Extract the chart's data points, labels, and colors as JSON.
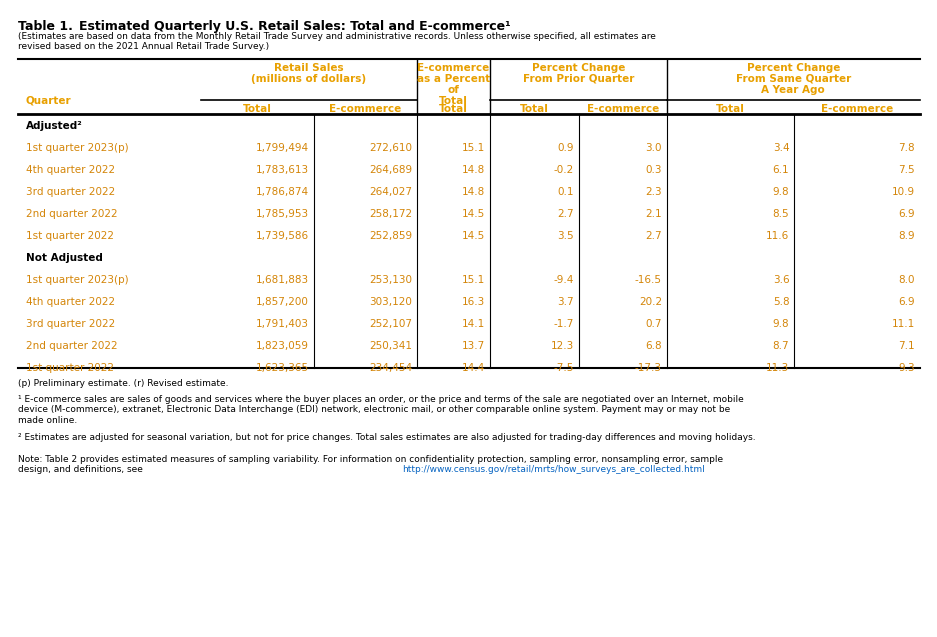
{
  "title": "Table 1.",
  "title_label": "Estimated Quarterly U.S. Retail Sales: Total and E-commerce¹",
  "subtitle": "(Estimates are based on data from the Monthly Retail Trade Survey and administrative records. Unless otherwise specified, all estimates are\nrevised based on the 2021 Annual Retail Trade Survey.)",
  "col_headers": {
    "group1": "Retail Sales\n(millions of dollars)",
    "group2": "E-commerce\nas a Percent\nof\nTotal",
    "group3": "Percent Change\nFrom Prior Quarter",
    "group4": "Percent Change\nFrom Same Quarter\nA Year Ago"
  },
  "sub_headers": [
    "Quarter",
    "Total",
    "E-commerce",
    "Total",
    "Total",
    "E-commerce",
    "Total",
    "E-commerce"
  ],
  "sub_sub_headers": [
    "",
    "",
    "",
    "",
    "",
    "",
    "A Year Ago",
    ""
  ],
  "adjusted_label": "Adjusted²",
  "not_adjusted_label": "Not Adjusted",
  "adjusted_rows": [
    [
      "1st quarter 2023(p)",
      "1,799,494",
      "272,610",
      "15.1",
      "0.9",
      "3.0",
      "3.4",
      "7.8"
    ],
    [
      "4th quarter 2022",
      "1,783,613",
      "264,689",
      "14.8",
      "-0.2",
      "0.3",
      "6.1",
      "7.5"
    ],
    [
      "3rd quarter 2022",
      "1,786,874",
      "264,027",
      "14.8",
      "0.1",
      "2.3",
      "9.8",
      "10.9"
    ],
    [
      "2nd quarter 2022",
      "1,785,953",
      "258,172",
      "14.5",
      "2.7",
      "2.1",
      "8.5",
      "6.9"
    ],
    [
      "1st quarter 2022",
      "1,739,586",
      "252,859",
      "14.5",
      "3.5",
      "2.7",
      "11.6",
      "8.9"
    ]
  ],
  "not_adjusted_rows": [
    [
      "1st quarter 2023(p)",
      "1,681,883",
      "253,130",
      "15.1",
      "-9.4",
      "-16.5",
      "3.6",
      "8.0"
    ],
    [
      "4th quarter 2022",
      "1,857,200",
      "303,120",
      "16.3",
      "3.7",
      "20.2",
      "5.8",
      "6.9"
    ],
    [
      "3rd quarter 2022",
      "1,791,403",
      "252,107",
      "14.1",
      "-1.7",
      "0.7",
      "9.8",
      "11.1"
    ],
    [
      "2nd quarter 2022",
      "1,823,059",
      "250,341",
      "13.7",
      "12.3",
      "6.8",
      "8.7",
      "7.1"
    ],
    [
      "1st quarter 2022",
      "1,623,365",
      "234,454",
      "14.4",
      "-7.5",
      "-17.3",
      "11.3",
      "9.3"
    ]
  ],
  "footnote_p": "(p) Preliminary estimate. (r) Revised estimate.",
  "footnote_1": "¹ E-commerce sales are sales of goods and services where the buyer places an order, or the price and terms of the sale are negotiated over an Internet, mobile\ndevice (M-commerce), extranet, Electronic Data Interchange (EDI) network, electronic mail, or other comparable online system. Payment may or may not be\nmade online.",
  "footnote_2": "² Estimates are adjusted for seasonal variation, but not for price changes. Total sales estimates are also adjusted for trading-day differences and moving holidays.",
  "note": "Note: Table 2 provides estimated measures of sampling variability. For information on confidentiality protection, sampling error, nonsampling error, sample\ndesign, and definitions, see http://www.census.gov/retail/mrts/how_surveys_are_collected.html.",
  "note_url": "http://www.census.gov/retail/mrts/how_surveys_are_collected.html",
  "header_color": "#E8A000",
  "data_color": "#D4860A",
  "bold_color": "#000000",
  "bg_color": "#FFFFFF",
  "line_color": "#000000"
}
